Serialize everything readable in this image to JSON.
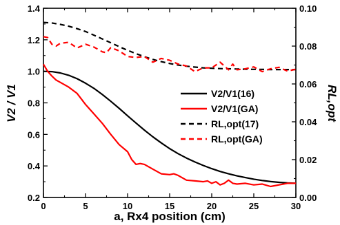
{
  "chart_data": {
    "type": "line",
    "xlabel": "a, Rx4 position (cm)",
    "ylabel": "V2 / V1",
    "y2label": "RL,opt",
    "xlim": [
      0,
      30
    ],
    "ylim": [
      0.2,
      1.4
    ],
    "y2lim": [
      0.0,
      0.1
    ],
    "xticks": [
      "0",
      "5",
      "10",
      "15",
      "20",
      "25",
      "30"
    ],
    "yticks": [
      "0.2",
      "0.4",
      "0.6",
      "0.8",
      "1.0",
      "1.2",
      "1.4"
    ],
    "y2ticks": [
      "0.00",
      "0.02",
      "0.04",
      "0.06",
      "0.08",
      "0.10"
    ],
    "legend_position": "right",
    "grid": false,
    "series": [
      {
        "name": "V2/V1(16)",
        "axis": "left",
        "color": "#000000",
        "dash": "solid",
        "x": [
          0,
          1,
          2,
          3,
          4,
          5,
          6,
          7,
          8,
          9,
          10,
          11,
          12,
          13,
          14,
          15,
          16,
          17,
          18,
          19,
          20,
          21,
          22,
          23,
          24,
          25,
          26,
          27,
          28,
          29,
          30
        ],
        "y": [
          1.0,
          0.998,
          0.99,
          0.975,
          0.953,
          0.925,
          0.892,
          0.853,
          0.81,
          0.765,
          0.718,
          0.672,
          0.627,
          0.585,
          0.546,
          0.51,
          0.478,
          0.45,
          0.425,
          0.403,
          0.383,
          0.365,
          0.35,
          0.337,
          0.326,
          0.316,
          0.308,
          0.301,
          0.296,
          0.292,
          0.29
        ]
      },
      {
        "name": "V2/V1(GA)",
        "axis": "left",
        "color": "#ff0000",
        "dash": "solid",
        "x": [
          0,
          0.5,
          1,
          1.5,
          2,
          3,
          4,
          5,
          6,
          7,
          8,
          9,
          10,
          10.5,
          11,
          11.5,
          12,
          13,
          14,
          15,
          15.5,
          16,
          17,
          18,
          19,
          19.5,
          20,
          20.5,
          21,
          21.5,
          22,
          22.5,
          23,
          24,
          25,
          26,
          27,
          28,
          29,
          30
        ],
        "y": [
          1.045,
          1.0,
          0.97,
          0.945,
          0.93,
          0.9,
          0.86,
          0.79,
          0.73,
          0.67,
          0.6,
          0.535,
          0.49,
          0.44,
          0.41,
          0.415,
          0.41,
          0.38,
          0.35,
          0.345,
          0.35,
          0.34,
          0.31,
          0.305,
          0.3,
          0.305,
          0.29,
          0.3,
          0.28,
          0.29,
          0.31,
          0.29,
          0.285,
          0.29,
          0.28,
          0.285,
          0.27,
          0.28,
          0.29,
          0.29
        ]
      },
      {
        "name": "RL,opt(17)",
        "axis": "right",
        "color": "#000000",
        "dash": "dashed",
        "x": [
          0,
          1,
          2,
          3,
          4,
          5,
          6,
          7,
          8,
          9,
          10,
          11,
          12,
          13,
          14,
          15,
          16,
          17,
          18,
          19,
          20,
          21,
          22,
          23,
          24,
          25,
          26,
          27,
          28,
          29,
          30
        ],
        "y": [
          0.0925,
          0.0922,
          0.0915,
          0.0905,
          0.0892,
          0.0877,
          0.0858,
          0.0838,
          0.0818,
          0.0797,
          0.0778,
          0.076,
          0.0744,
          0.073,
          0.0718,
          0.0708,
          0.07,
          0.0694,
          0.0689,
          0.0685,
          0.0683,
          0.0681,
          0.068,
          0.0679,
          0.0678,
          0.0677,
          0.0677,
          0.0676,
          0.0676,
          0.0676,
          0.0676
        ]
      },
      {
        "name": "RL,opt(GA)",
        "axis": "right",
        "color": "#ff0000",
        "dash": "dashed",
        "x": [
          0,
          0.5,
          1,
          1.5,
          2,
          3,
          4,
          5,
          6,
          7,
          7.5,
          8,
          9,
          10,
          11,
          12,
          13,
          14,
          15,
          16,
          17,
          18,
          19,
          20,
          21,
          22,
          22.5,
          23,
          24,
          25,
          26,
          27,
          28,
          29,
          30
        ],
        "y": [
          0.085,
          0.0845,
          0.081,
          0.08,
          0.0815,
          0.082,
          0.079,
          0.081,
          0.0795,
          0.077,
          0.0765,
          0.0792,
          0.0775,
          0.0745,
          0.074,
          0.0745,
          0.0715,
          0.0735,
          0.0725,
          0.0705,
          0.0695,
          0.0665,
          0.0685,
          0.0685,
          0.0715,
          0.0675,
          0.0705,
          0.0675,
          0.068,
          0.069,
          0.0665,
          0.068,
          0.0688,
          0.0668,
          0.0678
        ]
      }
    ]
  }
}
